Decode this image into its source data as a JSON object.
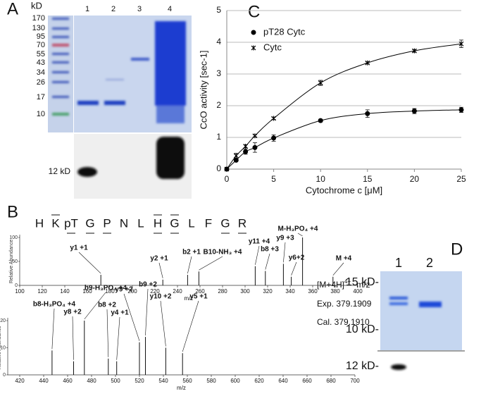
{
  "panel_labels": [
    "A",
    "B",
    "C",
    "D"
  ],
  "gel_a": {
    "unit": "kD",
    "markers": [
      "170",
      "130",
      "95",
      "70",
      "55",
      "43",
      "34",
      "26",
      "17",
      "10"
    ],
    "lanes": [
      "1",
      "2",
      "3",
      "4"
    ],
    "blot_label": "12 kD"
  },
  "spectrum": {
    "sequence": [
      "H",
      "K",
      "pT",
      "G",
      "P",
      "N",
      "L",
      "H",
      "G",
      "L",
      "F",
      "G",
      "R"
    ],
    "top": {
      "ylabel": "Relative Abundance",
      "xlabel": "m/z",
      "xlim": [
        100,
        400
      ],
      "xticks": [
        100,
        120,
        140,
        160,
        180,
        200,
        220,
        240,
        260,
        280,
        300,
        320,
        340,
        360,
        380,
        400
      ],
      "ylim": [
        0,
        100
      ],
      "yticks": [
        0,
        50,
        100
      ],
      "peaks": [
        {
          "label": "y1 +1",
          "mz": 172,
          "height": 22
        },
        {
          "label": "y2 +1",
          "mz": 227,
          "height": 12
        },
        {
          "label": "b2 +1",
          "mz": 249,
          "height": 22
        },
        {
          "label": "B10-NH₃ +4",
          "mz": 259,
          "height": 29
        },
        {
          "label": "y11 +4",
          "mz": 309,
          "height": 40
        },
        {
          "label": "b8 +3",
          "mz": 318,
          "height": 30
        },
        {
          "label": "y9 +3",
          "mz": 334,
          "height": 45
        },
        {
          "label": "y6+2",
          "mz": 341,
          "height": 18
        },
        {
          "label": "M-H₃PO₄ +4",
          "mz": 351,
          "height": 100
        },
        {
          "label": "M +4",
          "mz": 378,
          "height": 18
        }
      ]
    },
    "bottom": {
      "ylabel": "Relative Abundance",
      "xlabel": "m/z",
      "xlim": [
        410,
        700
      ],
      "xticks": [
        420,
        440,
        460,
        480,
        500,
        520,
        540,
        560,
        580,
        600,
        620,
        640,
        660,
        680,
        700
      ],
      "ylim": [
        0,
        20
      ],
      "yticks": [
        0,
        10,
        20
      ],
      "peaks": [
        {
          "label": "b8-H₃PO₄ +4",
          "mz": 447,
          "height": 9
        },
        {
          "label": "y8 +2",
          "mz": 465,
          "height": 5
        },
        {
          "label": "b9-H₃PO₄ +4",
          "mz": 474,
          "height": 20
        },
        {
          "label": "b8 +2",
          "mz": 494,
          "height": 6
        },
        {
          "label": "y4 +1",
          "mz": 501,
          "height": 5
        },
        {
          "label": "y9 +2",
          "mz": 520,
          "height": 12
        },
        {
          "label": "b9 +2",
          "mz": 525,
          "height": 14
        },
        {
          "label": "y10 +2",
          "mz": 542,
          "height": 10
        },
        {
          "label": "y5 +1",
          "mz": 556,
          "height": 8
        }
      ]
    },
    "ion": {
      "formula": "[M+4H]",
      "charge": "4+",
      "unit": "m/z"
    },
    "experimental": "Exp. 379.1909",
    "calculated": "Cal. 379.1910"
  },
  "chart_data": {
    "type": "scatter",
    "xlabel": "Cytochrome c [μM]",
    "ylabel": "CcO activity [sec-1]",
    "x": [
      0,
      1,
      2,
      3,
      5,
      10,
      15,
      20,
      25
    ],
    "xlim": [
      0,
      25
    ],
    "xticks": [
      0,
      5,
      10,
      15,
      20,
      25
    ],
    "ylim": [
      0,
      5
    ],
    "yticks": [
      0,
      1,
      2,
      3,
      4,
      5
    ],
    "grid": true,
    "series": [
      {
        "name": "pT28 Cytc",
        "color": "#000000",
        "marker": "circle",
        "values": [
          0,
          0.28,
          0.55,
          0.68,
          0.98,
          1.53,
          1.75,
          1.83,
          1.87
        ],
        "errors": [
          0,
          0.03,
          0.08,
          0.15,
          0.1,
          0.04,
          0.12,
          0.08,
          0.08
        ]
      },
      {
        "name": "Cytc",
        "color": "#000000",
        "marker": "asterisk",
        "values": [
          0,
          0.42,
          0.72,
          1.05,
          1.6,
          2.72,
          3.35,
          3.73,
          3.95
        ],
        "errors": [
          0,
          0.08,
          0.05,
          0.03,
          0.03,
          0.08,
          0.03,
          0.04,
          0.12
        ]
      }
    ]
  },
  "gel_d": {
    "lanes": [
      "1",
      "2"
    ],
    "markers": [
      "15 kD-",
      "10 kD-"
    ],
    "blot_label": "12 kD-"
  }
}
